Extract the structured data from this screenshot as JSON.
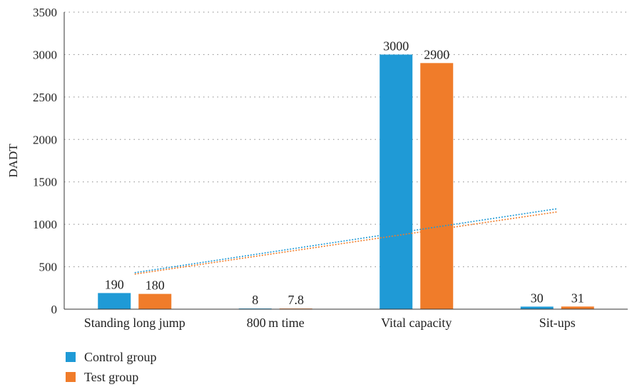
{
  "chart_data": {
    "type": "bar",
    "ylabel": "DADT",
    "ylim": [
      0,
      3500
    ],
    "yticks": [
      0,
      500,
      1000,
      1500,
      2000,
      2500,
      3000,
      3500
    ],
    "grid": "dotted horizontal",
    "legend_position": "bottom-left",
    "categories": [
      "Standing long jump",
      "800 m time",
      "Vital capacity",
      "Sit-ups"
    ],
    "series": [
      {
        "name": "Control group",
        "color": "#1f9ad6",
        "values": [
          190,
          8,
          3000,
          30
        ],
        "labels": [
          "190",
          "8",
          "3000",
          "30"
        ]
      },
      {
        "name": "Test group",
        "color": "#f07c2a",
        "values": [
          180,
          7.8,
          2900,
          31
        ],
        "labels": [
          "180",
          "7.8",
          "2900",
          "31"
        ]
      }
    ],
    "trendlines": "linear, dotted, one per series"
  }
}
